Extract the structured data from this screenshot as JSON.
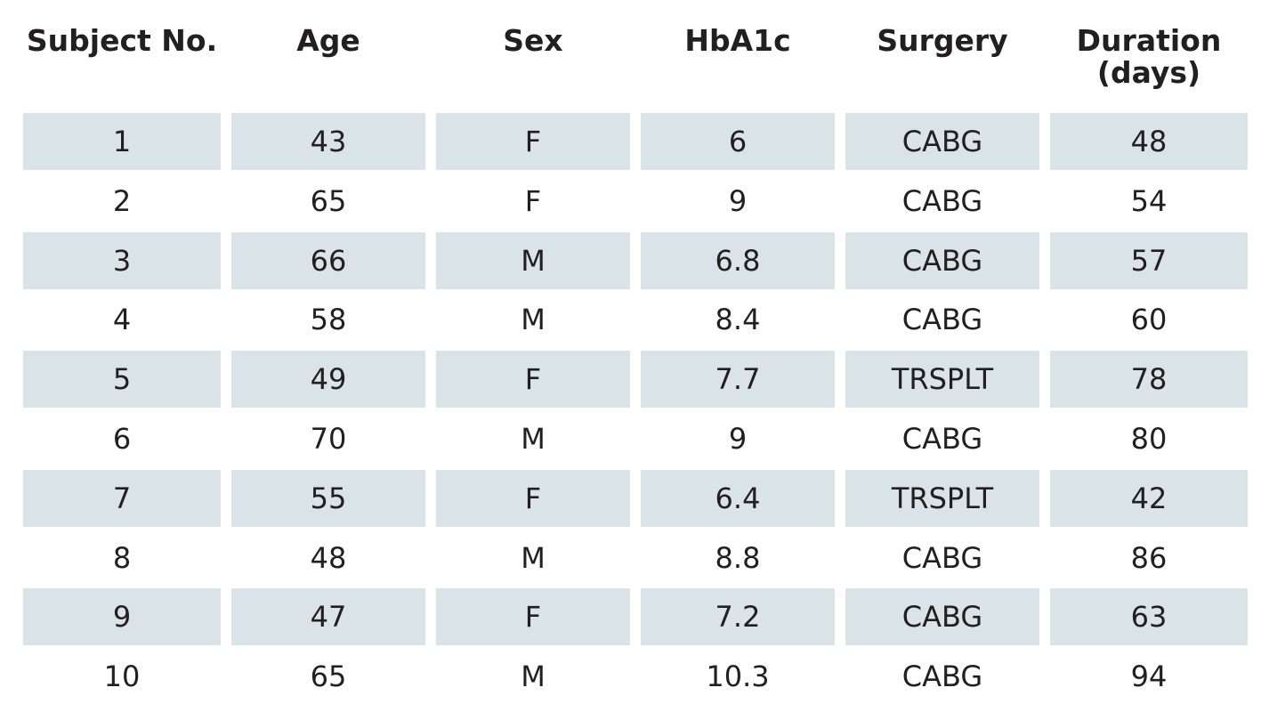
{
  "table": {
    "headers": [
      "Subject No.",
      "Age",
      "Sex",
      "HbA1c",
      "Surgery",
      "Duration\n(days)"
    ],
    "rows": [
      [
        "1",
        "43",
        "F",
        "6",
        "CABG",
        "48"
      ],
      [
        "2",
        "65",
        "F",
        "9",
        "CABG",
        "54"
      ],
      [
        "3",
        "66",
        "M",
        "6.8",
        "CABG",
        "57"
      ],
      [
        "4",
        "58",
        "M",
        "8.4",
        "CABG",
        "60"
      ],
      [
        "5",
        "49",
        "F",
        "7.7",
        "TRSPLT",
        "78"
      ],
      [
        "6",
        "70",
        "M",
        "9",
        "CABG",
        "80"
      ],
      [
        "7",
        "55",
        "F",
        "6.4",
        "TRSPLT",
        "42"
      ],
      [
        "8",
        "48",
        "M",
        "8.8",
        "CABG",
        "86"
      ],
      [
        "9",
        "47",
        "F",
        "7.2",
        "CABG",
        "63"
      ],
      [
        "10",
        "65",
        "M",
        "10.3",
        "CABG",
        "94"
      ]
    ]
  },
  "colors": {
    "shade": "#d9e3e8",
    "text": "#231f20"
  }
}
